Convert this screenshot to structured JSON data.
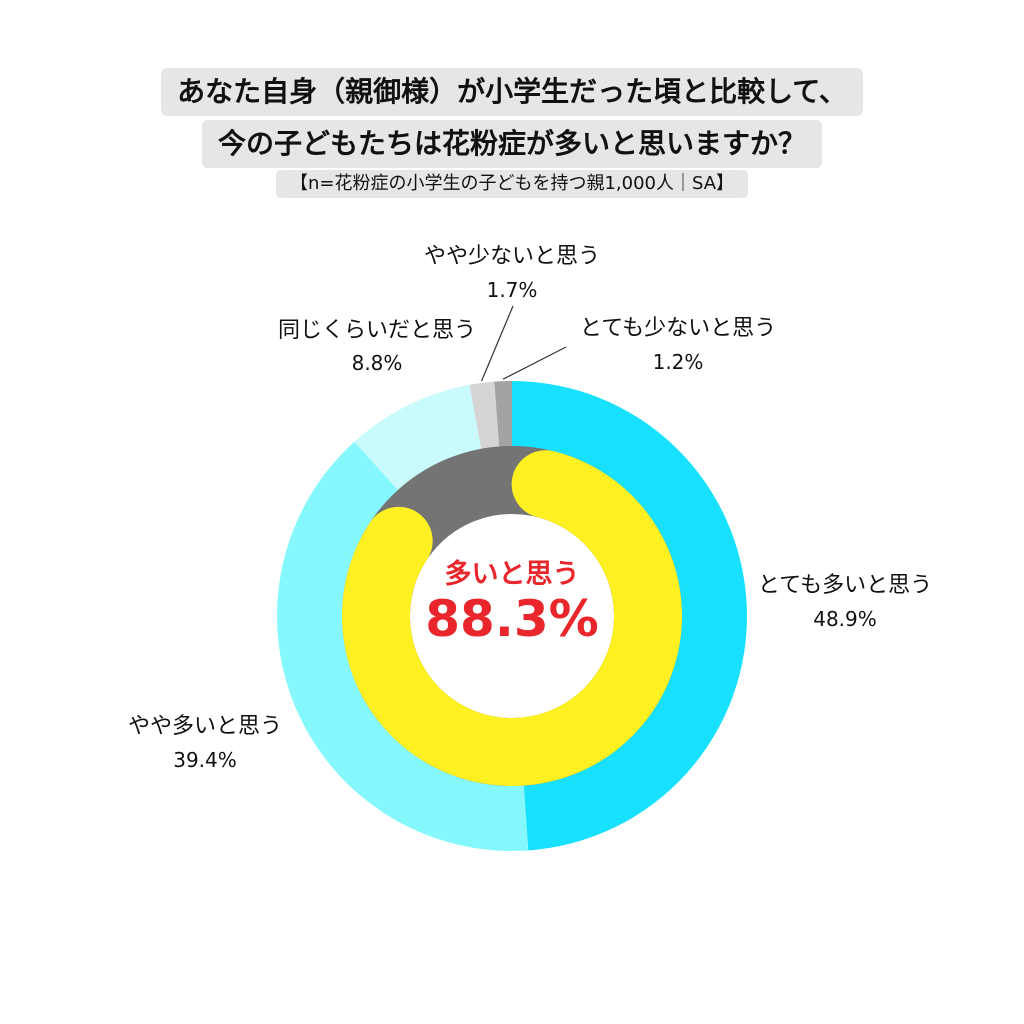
{
  "title": {
    "line1": "あなた自身（親御様）が小学生だった頃と比較して、",
    "line2": "今の子どもたちは花粉症が多いと思いますか？",
    "subtitle": "【n=花粉症の小学生の子どもを持つ親1,000人｜SA】"
  },
  "center": {
    "label": "多いと思う",
    "value": "88.3%"
  },
  "chart_data": {
    "type": "pie",
    "title": "あなた自身（親御様）が小学生だった頃と比較して、今の子どもたちは花粉症が多いと思いますか？",
    "subtitle": "【n=花粉症の小学生の子どもを持つ親1,000人｜SA】",
    "style": "double-donut",
    "outer_ring": {
      "slices": [
        {
          "label": "とても多いと思う",
          "value": 48.9,
          "value_label": "48.9%",
          "color": "#17e1ff"
        },
        {
          "label": "やや多いと思う",
          "value": 39.4,
          "value_label": "39.4%",
          "color": "#85f8fd"
        },
        {
          "label": "同じくらいだと思う",
          "value": 8.8,
          "value_label": "8.8%",
          "color": "#c9fbfd"
        },
        {
          "label": "やや少ないと思う",
          "value": 1.7,
          "value_label": "1.7%",
          "color": "#d5d5d5"
        },
        {
          "label": "とても少ないと思う",
          "value": 1.2,
          "value_label": "1.2%",
          "color": "#a3a3a3"
        }
      ]
    },
    "inner_ring": {
      "slices": [
        {
          "label": "多いと思う",
          "value": 88.3,
          "value_label": "88.3%",
          "color": "#fff022"
        },
        {
          "label": "",
          "value": 11.7,
          "color": "#747474"
        }
      ]
    }
  }
}
